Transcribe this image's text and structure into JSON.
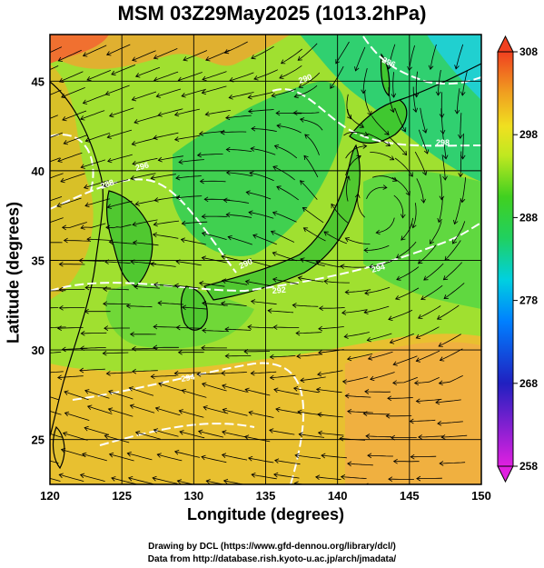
{
  "title": "MSM 03Z29May2025 (1013.2hPa)",
  "map": {
    "xlabel": "Longitude (degrees)",
    "ylabel": "Latitude  (degrees)",
    "xlim": [
      120,
      150
    ],
    "ylim": [
      22.5,
      47.6
    ],
    "xticks": [
      "120",
      "125",
      "130",
      "135",
      "140",
      "145",
      "150"
    ],
    "yticks": [
      "25",
      "30",
      "35",
      "40",
      "45"
    ],
    "contour_labels": [
      "288",
      "290",
      "290",
      "292",
      "294",
      "294",
      "296",
      "296",
      "298"
    ]
  },
  "colorbar": {
    "min": 258,
    "max": 308,
    "labels": [
      "308",
      "298",
      "288",
      "278",
      "268",
      "258"
    ],
    "colors": [
      "#e020e0",
      "#4040e0",
      "#0060ff",
      "#00c8ff",
      "#20e0a0",
      "#20d020",
      "#80e020",
      "#e0f020",
      "#f0c020",
      "#f08020",
      "#f04020"
    ]
  },
  "credits": {
    "line1": "Drawing by DCL (https://www.gfd-dennou.org/library/dcl/)",
    "line2": "Data from http://database.rish.kyoto-u.ac.jp/arch/jmadata/"
  }
}
